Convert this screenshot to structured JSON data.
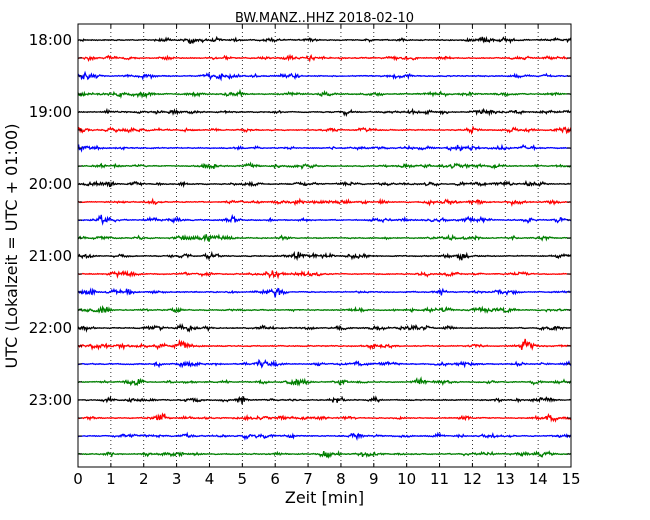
{
  "chart_data": {
    "type": "line",
    "title": "BW.MANZ..HHZ 2018-02-10",
    "xlabel": "Zeit  [min]",
    "ylabel": "UTC (Lokalzeit = UTC + 01:00)",
    "xlim": [
      0,
      15
    ],
    "x_ticks": [
      0,
      1,
      2,
      3,
      4,
      5,
      6,
      7,
      8,
      9,
      10,
      11,
      12,
      13,
      14,
      15
    ],
    "grid": "vertical dotted at each minute",
    "row_interval_minutes": 15,
    "row_start_times": [
      "18:00",
      "18:15",
      "18:30",
      "18:45",
      "19:00",
      "19:15",
      "19:30",
      "19:45",
      "20:00",
      "20:15",
      "20:30",
      "20:45",
      "21:00",
      "21:15",
      "21:30",
      "21:45",
      "22:00",
      "22:15",
      "22:30",
      "22:45",
      "23:00",
      "23:15",
      "23:30",
      "23:45"
    ],
    "y_tick_labels": [
      "18:00",
      "19:00",
      "20:00",
      "21:00",
      "22:00",
      "23:00"
    ],
    "colors": [
      "#000000",
      "#ff0000",
      "#0000ff",
      "#007f00"
    ]
  }
}
